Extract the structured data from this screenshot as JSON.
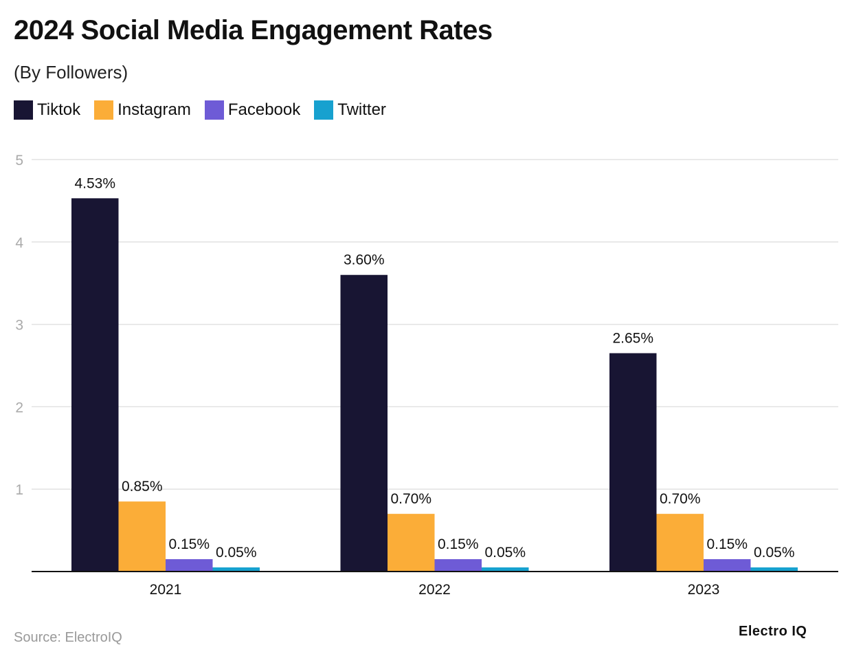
{
  "chart_data": {
    "type": "bar",
    "title": "2024 Social Media Engagement Rates",
    "subtitle": "(By Followers)",
    "categories": [
      "2021",
      "2022",
      "2023"
    ],
    "series": [
      {
        "name": "Tiktok",
        "color": "#181533",
        "values": [
          4.53,
          3.6,
          2.65
        ],
        "labels": [
          "4.53%",
          "3.60%",
          "2.65%"
        ]
      },
      {
        "name": "Instagram",
        "color": "#fbad38",
        "values": [
          0.85,
          0.7,
          0.7
        ],
        "labels": [
          "0.85%",
          "0.70%",
          "0.70%"
        ]
      },
      {
        "name": "Facebook",
        "color": "#6e5bd6",
        "values": [
          0.15,
          0.15,
          0.15
        ],
        "labels": [
          "0.15%",
          "0.15%",
          "0.15%"
        ]
      },
      {
        "name": "Twitter",
        "color": "#17a1cf",
        "values": [
          0.05,
          0.05,
          0.05
        ],
        "labels": [
          "0.05%",
          "0.05%",
          "0.05%"
        ]
      }
    ],
    "yticks": [
      1,
      2,
      3,
      4,
      5
    ],
    "ylim": [
      0,
      5
    ],
    "grid": true,
    "legend": "top-left"
  },
  "source": "Source: ElectroIQ",
  "logo": "Electro IQ"
}
